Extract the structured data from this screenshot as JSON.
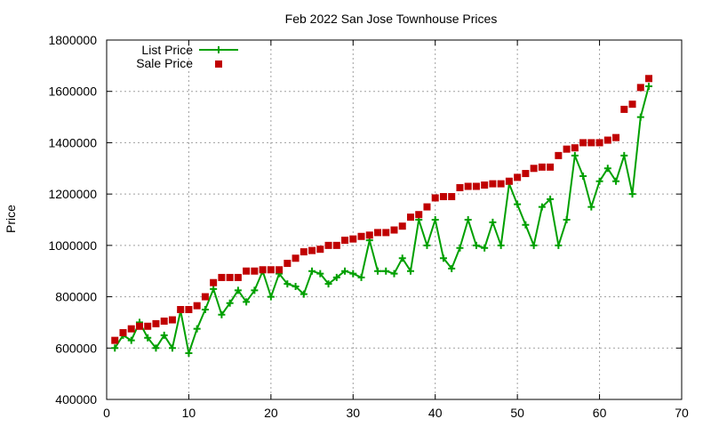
{
  "chart_data": {
    "type": "line",
    "title": "Feb 2022 San Jose Townhouse Prices",
    "xlabel": "",
    "ylabel": "Price",
    "xlim": [
      0,
      70
    ],
    "ylim": [
      400000,
      1800000
    ],
    "xticks": [
      0,
      10,
      20,
      30,
      40,
      50,
      60,
      70
    ],
    "yticks": [
      400000,
      600000,
      800000,
      1000000,
      1200000,
      1400000,
      1600000,
      1800000
    ],
    "grid": true,
    "legend_position": "top-left",
    "series": [
      {
        "name": "List Price",
        "style": "linespoints",
        "marker": "plus",
        "color": "#00a000",
        "x": [
          1,
          2,
          3,
          4,
          5,
          6,
          7,
          8,
          9,
          10,
          11,
          12,
          13,
          14,
          15,
          16,
          17,
          18,
          19,
          20,
          21,
          22,
          23,
          24,
          25,
          26,
          27,
          28,
          29,
          30,
          31,
          32,
          33,
          34,
          35,
          36,
          37,
          38,
          39,
          40,
          41,
          42,
          43,
          44,
          45,
          46,
          47,
          48,
          49,
          50,
          51,
          52,
          53,
          54,
          55,
          56,
          57,
          58,
          59,
          60,
          61,
          62,
          63,
          64,
          65,
          66
        ],
        "y": [
          600000,
          650000,
          630000,
          700000,
          640000,
          600000,
          650000,
          600000,
          745000,
          580000,
          675000,
          750000,
          830000,
          730000,
          775000,
          825000,
          780000,
          825000,
          900000,
          800000,
          890000,
          850000,
          840000,
          810000,
          900000,
          890000,
          850000,
          875000,
          900000,
          890000,
          875000,
          1020000,
          900000,
          900000,
          890000,
          950000,
          900000,
          1100000,
          1000000,
          1100000,
          950000,
          910000,
          990000,
          1100000,
          1000000,
          990000,
          1090000,
          1000000,
          1240000,
          1160000,
          1080000,
          1000000,
          1150000,
          1180000,
          1000000,
          1100000,
          1350000,
          1270000,
          1150000,
          1250000,
          1300000,
          1250000,
          1350000,
          1200000,
          1500000,
          1620000
        ]
      },
      {
        "name": "Sale Price",
        "style": "points",
        "marker": "square",
        "color": "#c00000",
        "x": [
          1,
          2,
          3,
          4,
          5,
          6,
          7,
          8,
          9,
          10,
          11,
          12,
          13,
          14,
          15,
          16,
          17,
          18,
          19,
          20,
          21,
          22,
          23,
          24,
          25,
          26,
          27,
          28,
          29,
          30,
          31,
          32,
          33,
          34,
          35,
          36,
          37,
          38,
          39,
          40,
          41,
          42,
          43,
          44,
          45,
          46,
          47,
          48,
          49,
          50,
          51,
          52,
          53,
          54,
          55,
          56,
          57,
          58,
          59,
          60,
          61,
          62,
          63,
          64,
          65,
          66
        ],
        "y": [
          630000,
          660000,
          675000,
          685000,
          685000,
          695000,
          705000,
          710000,
          750000,
          750000,
          765000,
          800000,
          855000,
          875000,
          875000,
          875000,
          900000,
          900000,
          905000,
          905000,
          905000,
          930000,
          950000,
          975000,
          980000,
          985000,
          1000000,
          1000000,
          1020000,
          1025000,
          1035000,
          1040000,
          1050000,
          1050000,
          1060000,
          1075000,
          1110000,
          1120000,
          1150000,
          1185000,
          1190000,
          1190000,
          1225000,
          1230000,
          1230000,
          1235000,
          1240000,
          1240000,
          1250000,
          1265000,
          1280000,
          1300000,
          1305000,
          1305000,
          1350000,
          1375000,
          1380000,
          1400000,
          1400000,
          1400000,
          1410000,
          1420000,
          1530000,
          1550000,
          1615000,
          1650000
        ]
      }
    ]
  }
}
